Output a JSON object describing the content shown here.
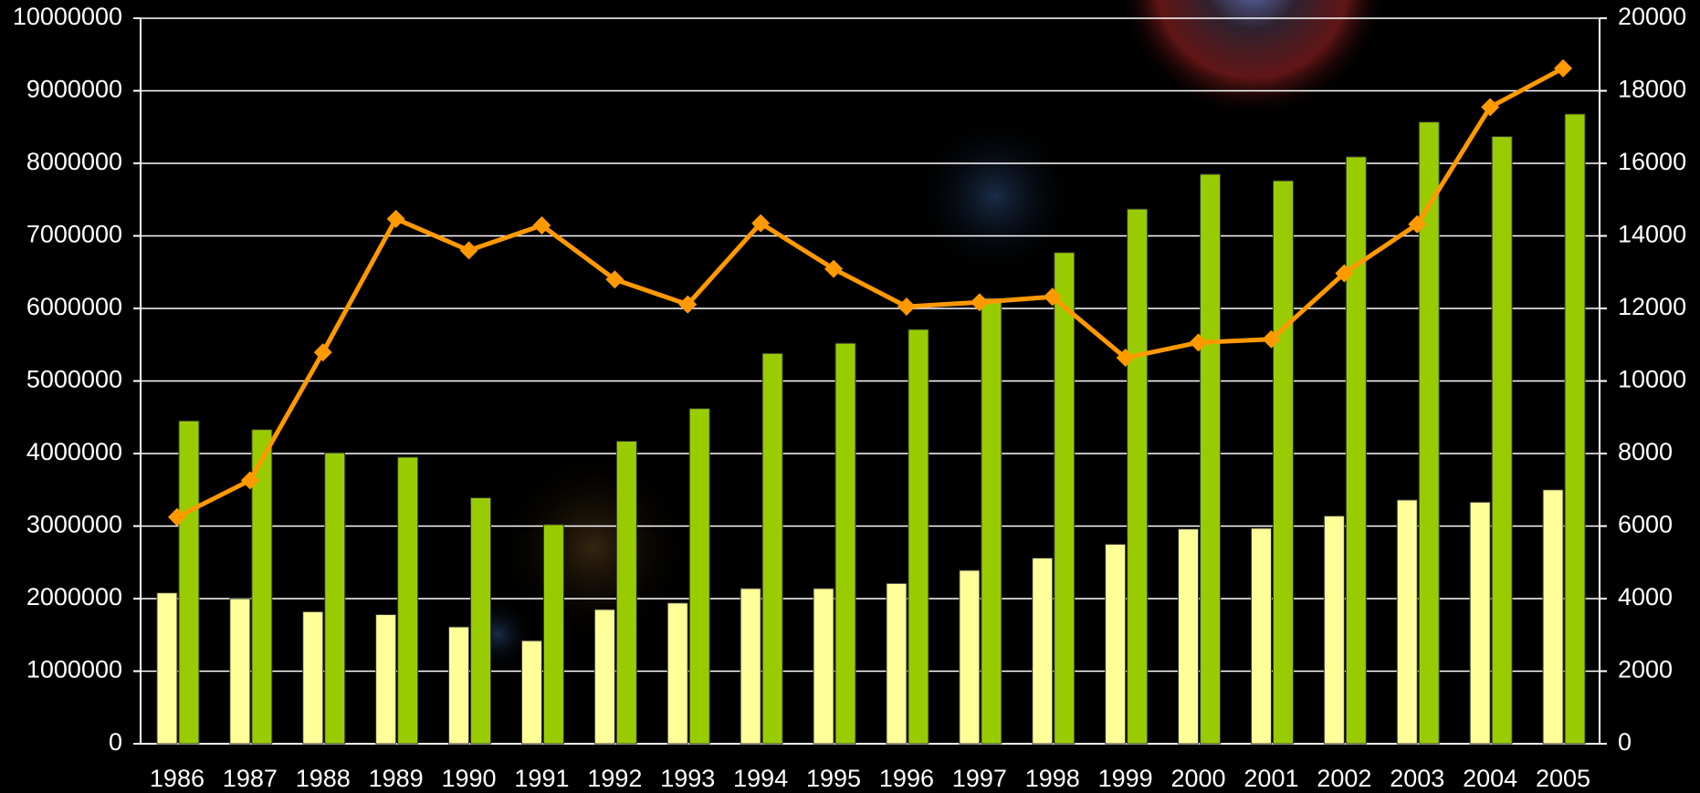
{
  "chart_data": {
    "type": "bar",
    "categories": [
      "1986",
      "1987",
      "1988",
      "1989",
      "1990",
      "1991",
      "1992",
      "1993",
      "1994",
      "1995",
      "1996",
      "1997",
      "1998",
      "1999",
      "2000",
      "2001",
      "2002",
      "2003",
      "2004",
      "2005"
    ],
    "series": [
      {
        "color": "#ffff99",
        "values": [
          2080000,
          2000000,
          1820000,
          1780000,
          1610000,
          1420000,
          1850000,
          1940000,
          2140000,
          2140000,
          2210000,
          2390000,
          2560000,
          2750000,
          2960000,
          2970000,
          3140000,
          3360000,
          3330000,
          3500000
        ]
      },
      {
        "color": "#99cc00",
        "values": [
          4450000,
          4330000,
          4010000,
          3950000,
          3390000,
          3020000,
          4170000,
          4620000,
          5380000,
          5520000,
          5710000,
          6140000,
          6770000,
          7370000,
          7850000,
          7760000,
          8090000,
          8570000,
          8370000,
          8680000
        ]
      },
      {
        "type": "line",
        "axis": "y2",
        "color": "#ff9900",
        "values": [
          6250,
          7260,
          10790,
          14470,
          13600,
          14290,
          12800,
          12110,
          14350,
          13090,
          12050,
          12170,
          12320,
          10640,
          11060,
          11150,
          12970,
          14320,
          17550,
          18620
        ]
      }
    ],
    "ylim": [
      0,
      10000000
    ],
    "yticks": [
      0,
      1000000,
      2000000,
      3000000,
      4000000,
      5000000,
      6000000,
      7000000,
      8000000,
      9000000,
      10000000
    ],
    "y2lim": [
      0,
      20000
    ],
    "y2ticks": [
      0,
      2000,
      4000,
      6000,
      8000,
      10000,
      12000,
      14000,
      16000,
      18000,
      20000
    ],
    "grid": true
  }
}
